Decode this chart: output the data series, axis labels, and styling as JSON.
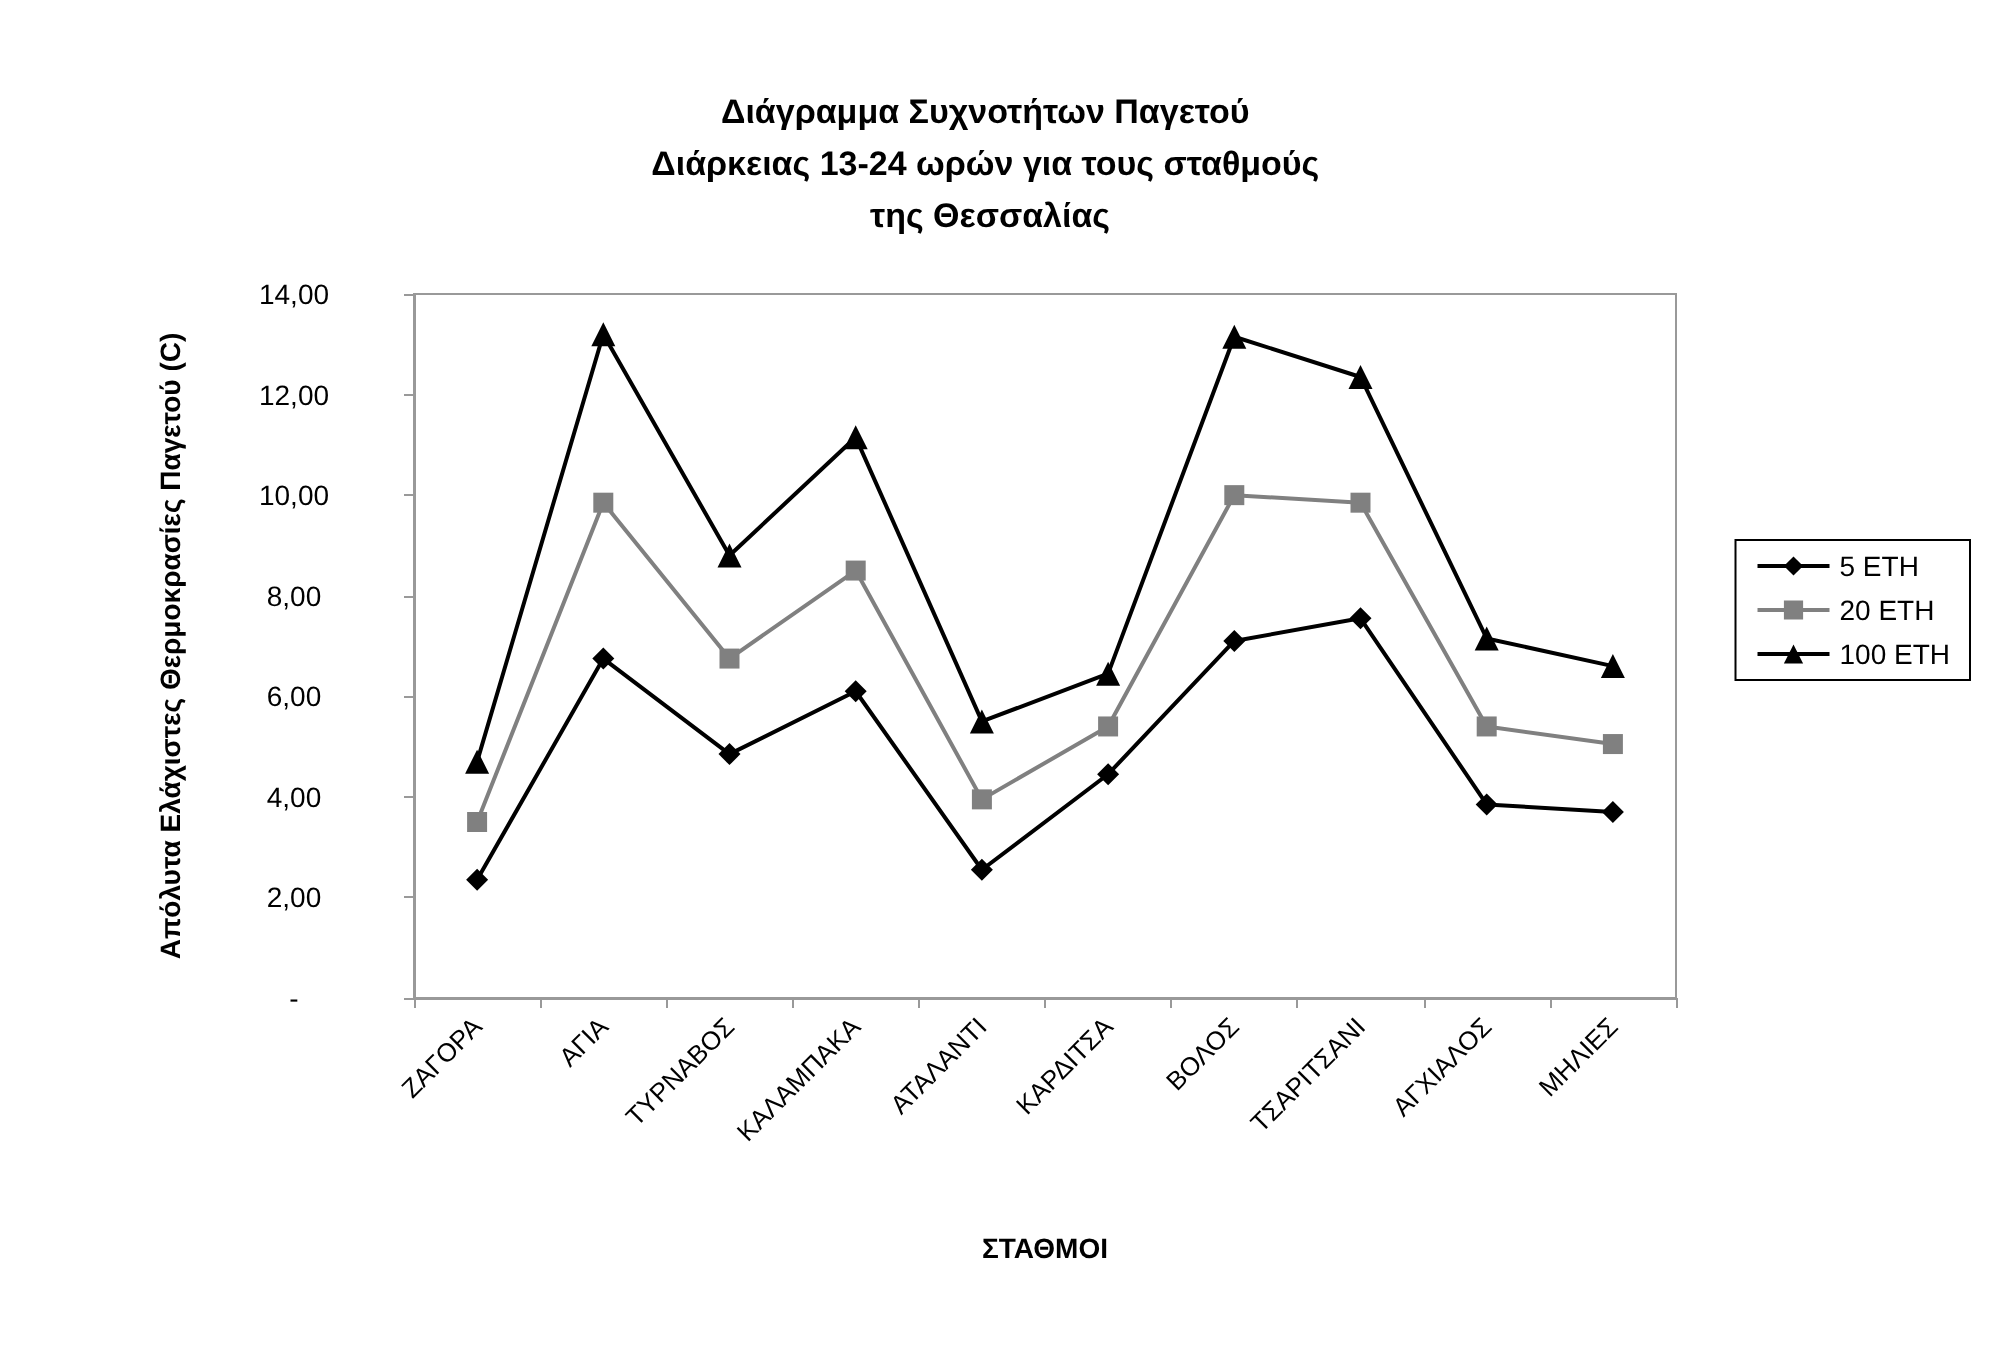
{
  "chart_data": {
    "type": "line",
    "title": "Διάγραμμα Συχνοτήτων Παγετού Διάρκειας 13-24 ωρών για τους σταθμούς της Θεσσαλίας",
    "xlabel": "ΣΤΑΘΜΟΙ",
    "ylabel": "Απόλυτα Ελάχιστες Θερμοκρασίες Παγετού (C)",
    "categories": [
      "ΖΑΓΟΡΑ",
      "ΑΓΙΑ",
      "ΤΥΡΝΑΒΟΣ",
      "ΚΑΛΑΜΠΑΚΑ",
      "ΑΤΑΛΑΝΤΙ",
      "ΚΑΡΔΙΤΣΑ",
      "ΒΟΛΟΣ",
      "ΤΣΑΡΙΤΣΑΝΙ",
      "ΑΓΧΙΑΛΟΣ",
      "ΜΗΛΙΕΣ"
    ],
    "series": [
      {
        "name": "5 ETH",
        "color": "#000000",
        "marker": "diamond",
        "values": [
          2.35,
          6.75,
          4.85,
          6.1,
          2.55,
          4.45,
          7.1,
          7.55,
          3.85,
          3.7
        ]
      },
      {
        "name": "20 ETH",
        "color": "#808080",
        "marker": "square",
        "values": [
          3.5,
          9.85,
          6.75,
          8.5,
          3.95,
          5.4,
          10.0,
          9.85,
          5.4,
          5.05
        ]
      },
      {
        "name": "100 ETH",
        "color": "#000000",
        "marker": "triangle",
        "values": [
          4.7,
          13.2,
          8.8,
          11.15,
          5.5,
          6.45,
          13.15,
          12.35,
          7.15,
          6.6
        ]
      }
    ],
    "ylim": [
      0,
      14
    ],
    "yticks": [
      {
        "value": 0,
        "label": "-"
      },
      {
        "value": 2,
        "label": "2,00"
      },
      {
        "value": 4,
        "label": "4,00"
      },
      {
        "value": 6,
        "label": "6,00"
      },
      {
        "value": 8,
        "label": "8,00"
      },
      {
        "value": 10,
        "label": "10,00"
      },
      {
        "value": 12,
        "label": "12,00"
      },
      {
        "value": 14,
        "label": "14,00"
      }
    ],
    "grid": false,
    "legend": "right",
    "line_style": "solid"
  }
}
